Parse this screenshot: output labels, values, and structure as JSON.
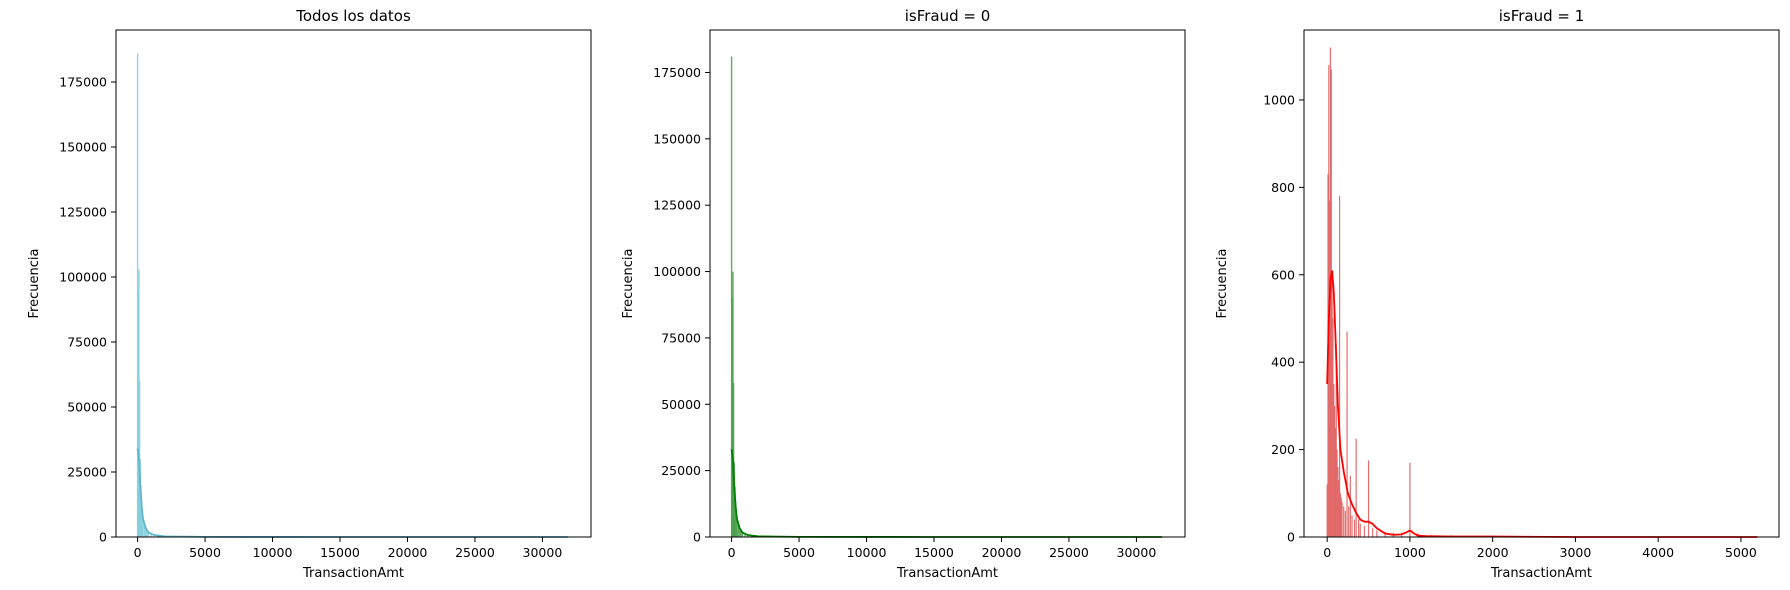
{
  "chart_data": [
    {
      "type": "histogram",
      "title": "Todos los datos",
      "xlabel": "TransactionAmt",
      "ylabel": "Frecuencia",
      "xlim": [
        -1600,
        33600
      ],
      "ylim": [
        0,
        195000
      ],
      "xticks": [
        0,
        5000,
        10000,
        15000,
        20000,
        25000,
        30000
      ],
      "yticks": [
        0,
        25000,
        50000,
        75000,
        100000,
        125000,
        150000,
        175000
      ],
      "bar_color": "#87cede",
      "kde_color": "#5fb6cf",
      "bins": [
        {
          "x": 0,
          "y": 186000
        },
        {
          "x": 50,
          "y": 35000
        },
        {
          "x": 60,
          "y": 95000
        },
        {
          "x": 100,
          "y": 103000
        },
        {
          "x": 150,
          "y": 60000
        },
        {
          "x": 200,
          "y": 30000
        },
        {
          "x": 250,
          "y": 20000
        },
        {
          "x": 300,
          "y": 14000
        },
        {
          "x": 350,
          "y": 10000
        },
        {
          "x": 400,
          "y": 7000
        },
        {
          "x": 500,
          "y": 5000
        },
        {
          "x": 600,
          "y": 3500
        },
        {
          "x": 700,
          "y": 2500
        },
        {
          "x": 800,
          "y": 1800
        },
        {
          "x": 1000,
          "y": 1500
        },
        {
          "x": 1200,
          "y": 800
        },
        {
          "x": 1500,
          "y": 500
        },
        {
          "x": 2000,
          "y": 250
        },
        {
          "x": 3000,
          "y": 100
        },
        {
          "x": 5000,
          "y": 40
        }
      ],
      "kde": {
        "x": [
          0,
          100,
          200,
          300,
          400,
          600,
          800,
          1200,
          2000,
          5000,
          10000,
          15000,
          20000,
          25000,
          31900
        ],
        "y": [
          34000,
          30000,
          20000,
          12000,
          7000,
          3500,
          1800,
          800,
          250,
          60,
          20,
          10,
          5,
          3,
          0
        ]
      }
    },
    {
      "type": "histogram",
      "title": "isFraud = 0",
      "xlabel": "TransactionAmt",
      "ylabel": "Frecuencia",
      "xlim": [
        -1600,
        33600
      ],
      "ylim": [
        0,
        191000
      ],
      "xticks": [
        0,
        5000,
        10000,
        15000,
        20000,
        25000,
        30000
      ],
      "yticks": [
        0,
        25000,
        50000,
        75000,
        100000,
        125000,
        150000,
        175000
      ],
      "bar_color": "#4ca04c",
      "kde_color": "#008000",
      "bins": [
        {
          "x": 0,
          "y": 181000
        },
        {
          "x": 50,
          "y": 33000
        },
        {
          "x": 60,
          "y": 90000
        },
        {
          "x": 100,
          "y": 100000
        },
        {
          "x": 150,
          "y": 58000
        },
        {
          "x": 200,
          "y": 28000
        },
        {
          "x": 250,
          "y": 19000
        },
        {
          "x": 300,
          "y": 13000
        },
        {
          "x": 350,
          "y": 9000
        },
        {
          "x": 400,
          "y": 6500
        },
        {
          "x": 500,
          "y": 4500
        },
        {
          "x": 600,
          "y": 3200
        },
        {
          "x": 700,
          "y": 2300
        },
        {
          "x": 800,
          "y": 1700
        },
        {
          "x": 1000,
          "y": 1400
        },
        {
          "x": 1200,
          "y": 700
        },
        {
          "x": 1500,
          "y": 450
        },
        {
          "x": 2000,
          "y": 220
        },
        {
          "x": 3000,
          "y": 90
        },
        {
          "x": 5000,
          "y": 35
        }
      ],
      "kde": {
        "x": [
          0,
          100,
          200,
          300,
          400,
          600,
          800,
          1200,
          2000,
          5000,
          10000,
          15000,
          20000,
          25000,
          31900
        ],
        "y": [
          33000,
          29000,
          19000,
          11500,
          6800,
          3300,
          1700,
          750,
          230,
          55,
          18,
          9,
          5,
          3,
          0
        ]
      }
    },
    {
      "type": "histogram",
      "title": "isFraud = 1",
      "xlabel": "TransactionAmt",
      "ylabel": "Frecuencia",
      "xlim": [
        -280,
        5460
      ],
      "ylim": [
        0,
        1160
      ],
      "xticks": [
        0,
        1000,
        2000,
        3000,
        4000,
        5000
      ],
      "yticks": [
        0,
        200,
        400,
        600,
        800,
        1000
      ],
      "bar_color": "#e06060",
      "kde_color": "#ff0000",
      "bins": [
        {
          "x": 0,
          "y": 120
        },
        {
          "x": 10,
          "y": 830
        },
        {
          "x": 20,
          "y": 1080
        },
        {
          "x": 30,
          "y": 770
        },
        {
          "x": 40,
          "y": 1120
        },
        {
          "x": 50,
          "y": 1070
        },
        {
          "x": 60,
          "y": 600
        },
        {
          "x": 70,
          "y": 500
        },
        {
          "x": 80,
          "y": 350
        },
        {
          "x": 90,
          "y": 300
        },
        {
          "x": 100,
          "y": 250
        },
        {
          "x": 110,
          "y": 440
        },
        {
          "x": 120,
          "y": 200
        },
        {
          "x": 130,
          "y": 160
        },
        {
          "x": 140,
          "y": 130
        },
        {
          "x": 150,
          "y": 780
        },
        {
          "x": 160,
          "y": 100
        },
        {
          "x": 170,
          "y": 90
        },
        {
          "x": 180,
          "y": 80
        },
        {
          "x": 200,
          "y": 70
        },
        {
          "x": 220,
          "y": 60
        },
        {
          "x": 240,
          "y": 470
        },
        {
          "x": 260,
          "y": 70
        },
        {
          "x": 280,
          "y": 140
        },
        {
          "x": 300,
          "y": 50
        },
        {
          "x": 330,
          "y": 40
        },
        {
          "x": 350,
          "y": 225
        },
        {
          "x": 380,
          "y": 40
        },
        {
          "x": 400,
          "y": 30
        },
        {
          "x": 450,
          "y": 25
        },
        {
          "x": 500,
          "y": 175
        },
        {
          "x": 550,
          "y": 20
        },
        {
          "x": 600,
          "y": 15
        },
        {
          "x": 700,
          "y": 12
        },
        {
          "x": 800,
          "y": 10
        },
        {
          "x": 900,
          "y": 10
        },
        {
          "x": 1000,
          "y": 170
        },
        {
          "x": 1100,
          "y": 8
        },
        {
          "x": 1250,
          "y": 5
        },
        {
          "x": 1500,
          "y": 4
        },
        {
          "x": 1800,
          "y": 3
        },
        {
          "x": 2200,
          "y": 3
        },
        {
          "x": 2700,
          "y": 2
        },
        {
          "x": 3000,
          "y": 2
        },
        {
          "x": 3500,
          "y": 1
        },
        {
          "x": 4200,
          "y": 1
        },
        {
          "x": 5000,
          "y": 1
        }
      ],
      "kde": {
        "x": [
          0,
          20,
          40,
          60,
          80,
          100,
          130,
          160,
          200,
          250,
          300,
          350,
          400,
          450,
          500,
          550,
          600,
          700,
          800,
          900,
          950,
          1000,
          1050,
          1100,
          1200,
          1500,
          2000,
          3000,
          4000,
          5200
        ],
        "y": [
          350,
          500,
          590,
          610,
          560,
          460,
          300,
          200,
          150,
          100,
          75,
          55,
          40,
          35,
          35,
          30,
          20,
          8,
          5,
          6,
          10,
          15,
          8,
          3,
          2,
          1,
          1,
          0,
          0,
          0
        ]
      }
    }
  ]
}
